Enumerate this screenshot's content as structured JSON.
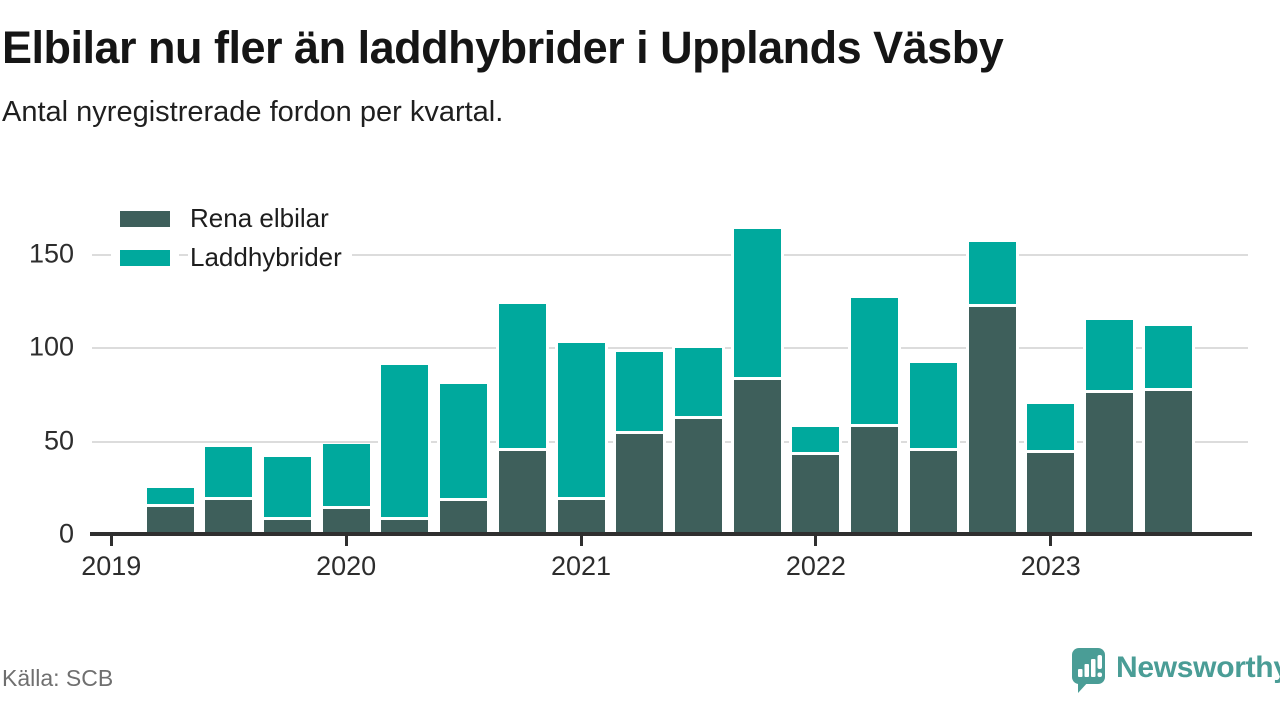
{
  "header": {
    "title": "Elbilar nu fler än laddhybrider i Upplands Väsby",
    "subtitle": "Antal nyregistrerade fordon per kvartal."
  },
  "legend": [
    {
      "label": "Rena elbilar",
      "color": "#3e5f5b"
    },
    {
      "label": "Laddhybrider",
      "color": "#00a99d"
    }
  ],
  "chart_data": {
    "type": "bar",
    "stacked": true,
    "title": "Elbilar nu fler än laddhybrider i Upplands Väsby",
    "subtitle": "Antal nyregistrerade fordon per kvartal.",
    "categories": [
      "2019 Q2",
      "2019 Q3",
      "2019 Q4",
      "2020 Q1",
      "2020 Q2",
      "2020 Q3",
      "2020 Q4",
      "2021 Q1",
      "2021 Q2",
      "2021 Q3",
      "2021 Q4",
      "2022 Q1",
      "2022 Q2",
      "2022 Q3",
      "2022 Q4",
      "2023 Q1",
      "2023 Q2",
      "2023 Q3"
    ],
    "series": [
      {
        "name": "Rena elbilar",
        "color": "#3e5f5b",
        "values": [
          15,
          19,
          8,
          14,
          8,
          18,
          45,
          19,
          54,
          62,
          83,
          43,
          58,
          45,
          122,
          44,
          76,
          77
        ]
      },
      {
        "name": "Laddhybrider",
        "color": "#00a99d",
        "values": [
          10,
          28,
          34,
          35,
          83,
          63,
          79,
          84,
          44,
          38,
          81,
          15,
          69,
          47,
          35,
          26,
          39,
          35
        ]
      }
    ],
    "xlabel": "",
    "ylabel": "",
    "ylim": [
      0,
      172
    ],
    "y_ticks": [
      0,
      50,
      100,
      150
    ],
    "x_tick_labels": [
      "2019",
      "2020",
      "2021",
      "2022",
      "2023"
    ],
    "grid": "horizontal",
    "legend_position": "top-left"
  },
  "footer": {
    "source": "Källa: SCB",
    "brand": "Newsworthy",
    "brand_icon": "speech-bubble-bar-chart-icon",
    "brand_color": "#4a9d96"
  }
}
